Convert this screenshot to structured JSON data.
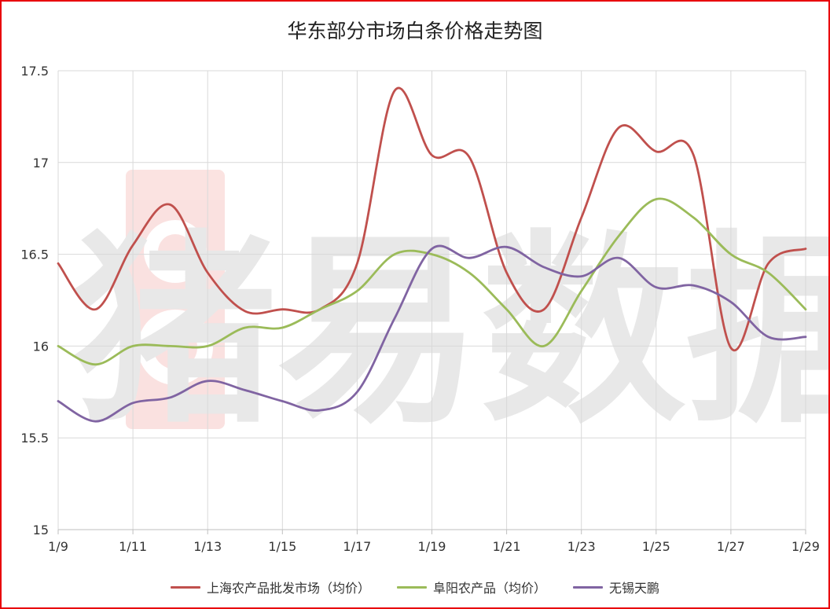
{
  "chart_data": {
    "type": "line",
    "title": "华东部分市场白条价格走势图",
    "xlabel": "",
    "ylabel": "",
    "x": [
      "1/9",
      "1/10",
      "1/11",
      "1/12",
      "1/13",
      "1/14",
      "1/15",
      "1/16",
      "1/17",
      "1/18",
      "1/19",
      "1/20",
      "1/21",
      "1/22",
      "1/23",
      "1/24",
      "1/25",
      "1/26",
      "1/27",
      "1/28",
      "1/29"
    ],
    "x_tick_labels": [
      "1/9",
      "1/11",
      "1/13",
      "1/15",
      "1/17",
      "1/19",
      "1/21",
      "1/23",
      "1/25",
      "1/27",
      "1/29"
    ],
    "y_tick_labels": [
      "15",
      "15.5",
      "16",
      "16.5",
      "17",
      "17.5"
    ],
    "ylim": [
      15,
      17.5
    ],
    "grid": true,
    "legend_position": "bottom",
    "series": [
      {
        "name": "上海农产品批发市场（均价）",
        "color": "#c0504d",
        "values": [
          16.45,
          16.2,
          16.55,
          16.77,
          16.4,
          16.19,
          16.2,
          16.2,
          16.45,
          17.39,
          17.04,
          17.03,
          16.4,
          16.2,
          16.7,
          17.19,
          17.06,
          17.04,
          15.99,
          16.45,
          16.53
        ]
      },
      {
        "name": "阜阳农产品（均价）",
        "color": "#9bbb59",
        "values": [
          16.0,
          15.9,
          16.0,
          16.0,
          16.0,
          16.1,
          16.1,
          16.2,
          16.3,
          16.5,
          16.5,
          16.4,
          16.2,
          16.0,
          16.3,
          16.6,
          16.8,
          16.7,
          16.5,
          16.4,
          16.2
        ]
      },
      {
        "name": "无锡天鹏",
        "color": "#8064a2",
        "values": [
          15.7,
          15.59,
          15.69,
          15.72,
          15.81,
          15.76,
          15.7,
          15.65,
          15.75,
          16.15,
          16.53,
          16.48,
          16.54,
          16.43,
          16.38,
          16.48,
          16.32,
          16.33,
          16.24,
          16.05,
          16.05
        ]
      }
    ],
    "watermark": "猪易数据"
  }
}
